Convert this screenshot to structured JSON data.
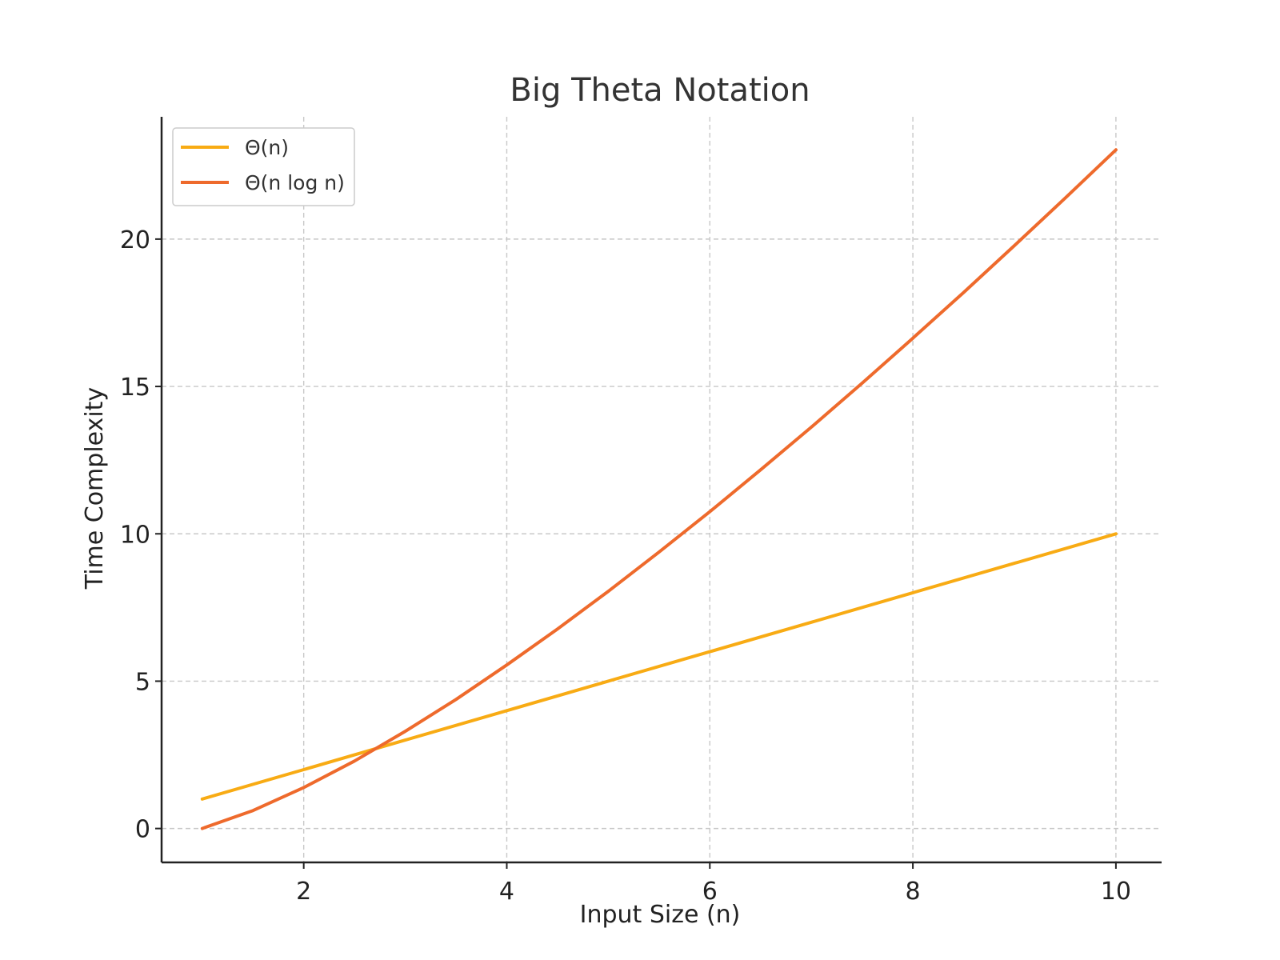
{
  "chart_data": {
    "type": "line",
    "title": "Big Theta Notation",
    "xlabel": "Input Size (n)",
    "ylabel": "Time Complexity",
    "xlim": [
      0.6,
      10.45
    ],
    "ylim": [
      -1.15,
      24.15
    ],
    "xticks": [
      2,
      4,
      6,
      8,
      10
    ],
    "yticks": [
      0,
      5,
      10,
      15,
      20
    ],
    "grid": true,
    "legend_position": "top-left",
    "series": [
      {
        "name": "Θ(n)",
        "color": "#f8ab14",
        "x": [
          1,
          2,
          3,
          4,
          5,
          6,
          7,
          8,
          9,
          10
        ],
        "y": [
          1,
          2,
          3,
          4,
          5,
          6,
          7,
          8,
          9,
          10
        ]
      },
      {
        "name": "Θ(n log n)",
        "color": "#ee6a2c",
        "x": [
          1,
          1.5,
          2,
          2.5,
          3,
          3.5,
          4,
          4.5,
          5,
          5.5,
          6,
          6.5,
          7,
          7.5,
          8,
          8.5,
          9,
          9.5,
          10
        ],
        "y": [
          0,
          0.61,
          1.39,
          2.29,
          3.3,
          4.38,
          5.55,
          6.77,
          8.05,
          9.38,
          10.75,
          12.17,
          13.62,
          15.11,
          16.64,
          18.19,
          19.78,
          21.39,
          23.03
        ]
      }
    ]
  }
}
